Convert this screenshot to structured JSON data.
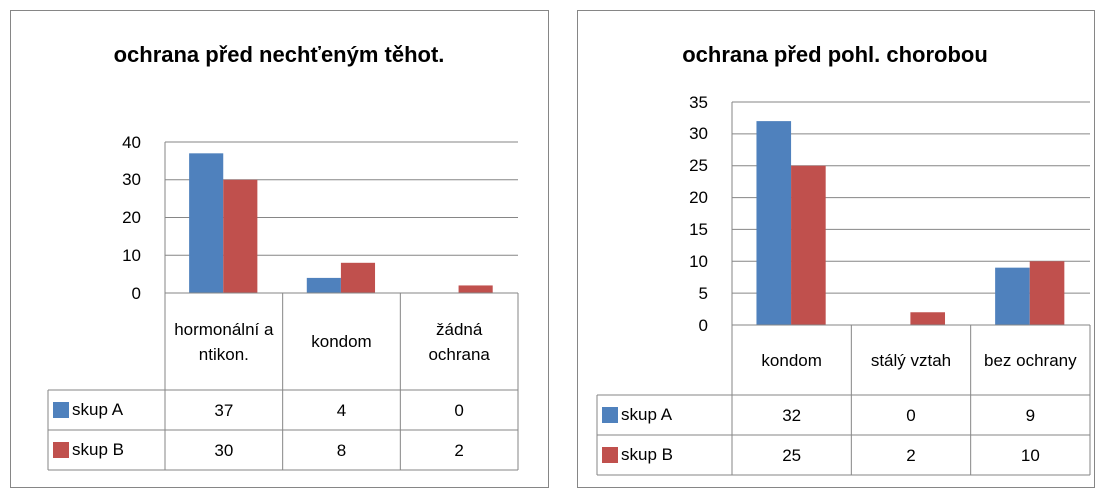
{
  "chart_data": [
    {
      "type": "bar",
      "title": "ochrana před nechťeným těhot.",
      "categories": [
        "hormonální antikon.",
        "kondom",
        "žádná ochrana"
      ],
      "series": [
        {
          "name": "skup A",
          "color": "#4f81bd",
          "values": [
            37,
            4,
            0
          ]
        },
        {
          "name": "skup B",
          "color": "#c0504d",
          "values": [
            30,
            8,
            2
          ]
        }
      ],
      "ylim": [
        0,
        40
      ],
      "yticks": [
        0,
        10,
        20,
        30,
        40
      ],
      "grid": true
    },
    {
      "type": "bar",
      "title": "ochrana před pohl. chorobou",
      "categories": [
        "kondom",
        "stálý vztah",
        "bez ochrany"
      ],
      "series": [
        {
          "name": "skup A",
          "color": "#4f81bd",
          "values": [
            32,
            0,
            9
          ]
        },
        {
          "name": "skup B",
          "color": "#c0504d",
          "values": [
            25,
            2,
            10
          ]
        }
      ],
      "ylim": [
        0,
        35
      ],
      "yticks": [
        0,
        5,
        10,
        15,
        20,
        25,
        30,
        35
      ],
      "grid": true
    }
  ]
}
